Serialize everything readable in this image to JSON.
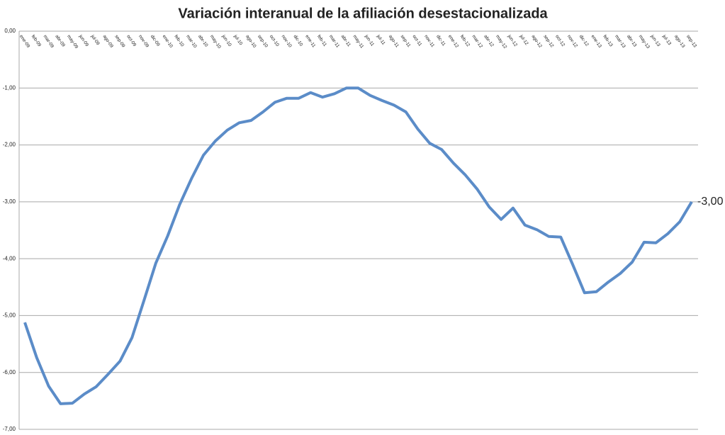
{
  "chart_data": {
    "type": "line",
    "title": "Variación interanual de la afiliación desestacionalizada",
    "categories": [
      "ene-09",
      "feb-09",
      "mar-09",
      "abr-09",
      "may-09",
      "jun-09",
      "jul-09",
      "ago-09",
      "sep-09",
      "oct-09",
      "nov-09",
      "dic-09",
      "ene-10",
      "feb-10",
      "mar-10",
      "abr-10",
      "may-10",
      "jun-10",
      "jul-10",
      "ago-10",
      "sep-10",
      "oct-10",
      "nov-10",
      "dic-10",
      "ene-11",
      "feb-11",
      "mar-11",
      "abr-11",
      "may-11",
      "jun-11",
      "jul-11",
      "ago-11",
      "sep-11",
      "oct-11",
      "nov-11",
      "dic-11",
      "ene-12",
      "feb-12",
      "mar-12",
      "abr-12",
      "may-12",
      "jun-12",
      "jul-12",
      "ago-12",
      "sep-12",
      "oct-12",
      "nov-12",
      "dic-12",
      "ene-13",
      "feb-13",
      "mar-13",
      "abr-13",
      "may-13",
      "jun-13",
      "jul-13",
      "ago-13",
      "sep-13"
    ],
    "values": [
      -5.12,
      -5.74,
      -6.24,
      -6.55,
      -6.54,
      -6.38,
      -6.25,
      -6.03,
      -5.8,
      -5.39,
      -4.74,
      -4.08,
      -3.6,
      -3.05,
      -2.59,
      -2.18,
      -1.93,
      -1.74,
      -1.61,
      -1.57,
      -1.42,
      -1.25,
      -1.18,
      -1.18,
      -1.08,
      -1.16,
      -1.1,
      -1.0,
      -1.0,
      -1.13,
      -1.22,
      -1.3,
      -1.42,
      -1.72,
      -1.97,
      -2.08,
      -2.32,
      -2.53,
      -2.78,
      -3.09,
      -3.31,
      -3.11,
      -3.41,
      -3.49,
      -3.61,
      -3.62,
      -4.1,
      -4.6,
      -4.58,
      -4.41,
      -4.26,
      -4.06,
      -3.71,
      -3.72,
      -3.56,
      -3.35,
      -3.0
    ],
    "value_labels": [
      null,
      null,
      null,
      null,
      null,
      null,
      null,
      null,
      null,
      null,
      null,
      null,
      null,
      null,
      null,
      null,
      null,
      null,
      null,
      null,
      null,
      null,
      null,
      null,
      null,
      null,
      null,
      null,
      null,
      null,
      null,
      null,
      null,
      null,
      null,
      null,
      null,
      null,
      null,
      null,
      null,
      null,
      null,
      null,
      null,
      null,
      null,
      null,
      null,
      null,
      null,
      null,
      null,
      null,
      null,
      null,
      "-3,00"
    ],
    "color": "#5b8cc8",
    "ylim": [
      -7,
      0
    ],
    "yticks": [
      {
        "value": 0,
        "label": "0,00"
      },
      {
        "value": -1,
        "label": "-1,00"
      },
      {
        "value": -2,
        "label": "-2,00"
      },
      {
        "value": -3,
        "label": "-3,00"
      },
      {
        "value": -4,
        "label": "-4,00"
      },
      {
        "value": -5,
        "label": "-5,00"
      },
      {
        "value": -6,
        "label": "-6,00"
      },
      {
        "value": -7,
        "label": "-7,00"
      }
    ],
    "grid": true
  }
}
